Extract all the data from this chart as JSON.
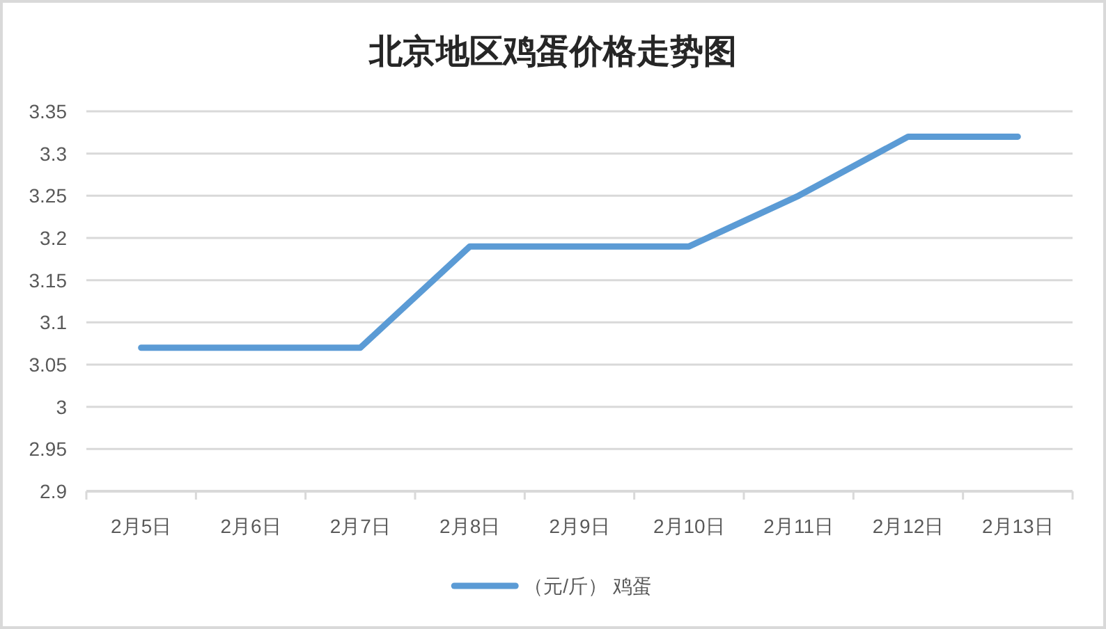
{
  "chart_data": {
    "type": "line",
    "title": "北京地区鸡蛋价格走势图",
    "categories": [
      "2月5日",
      "2月6日",
      "2月7日",
      "2月8日",
      "2月9日",
      "2月10日",
      "2月11日",
      "2月12日",
      "2月13日"
    ],
    "series": [
      {
        "name": "（元/斤） 鸡蛋",
        "color": "#5b9bd5",
        "values": [
          3.07,
          3.07,
          3.07,
          3.19,
          3.19,
          3.19,
          3.25,
          3.32,
          3.32
        ]
      }
    ],
    "ylim": [
      2.9,
      3.35
    ],
    "yticks": [
      2.9,
      2.95,
      3,
      3.05,
      3.1,
      3.15,
      3.2,
      3.25,
      3.3,
      3.35
    ],
    "grid": "y",
    "legend": "bottom",
    "line_style": "solid"
  }
}
